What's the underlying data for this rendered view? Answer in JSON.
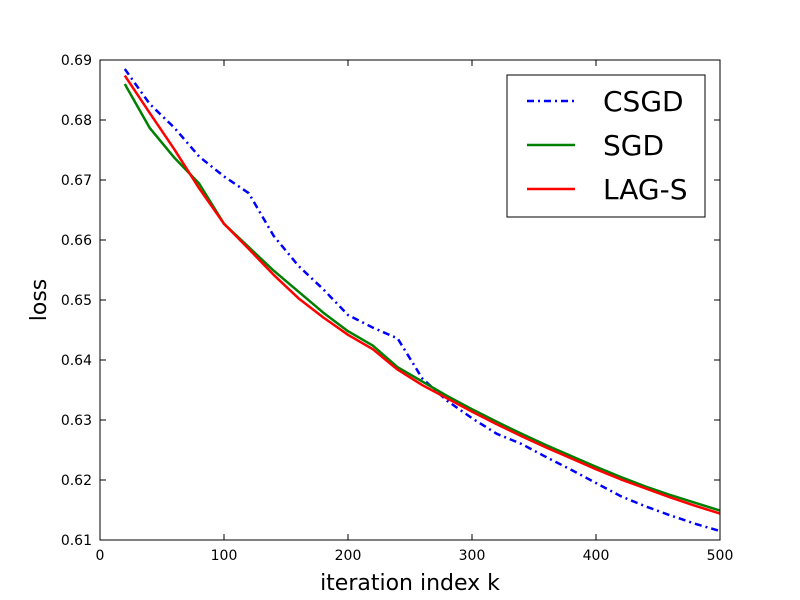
{
  "chart_data": {
    "type": "line",
    "xlabel": "iteration index k",
    "ylabel": "loss",
    "xlim": [
      0,
      500
    ],
    "ylim": [
      0.61,
      0.69
    ],
    "xticks": [
      0,
      100,
      200,
      300,
      400,
      500
    ],
    "yticks": [
      0.61,
      0.62,
      0.63,
      0.64,
      0.65,
      0.66,
      0.67,
      0.68,
      0.69
    ],
    "ytick_labels": [
      "0.61",
      "0.62",
      "0.63",
      "0.64",
      "0.65",
      "0.66",
      "0.67",
      "0.68",
      "0.69"
    ],
    "grid": false,
    "legend_position": "top-right",
    "series": [
      {
        "name": "CSGD",
        "color": "#0000ff",
        "style": "dashdot",
        "x": [
          20,
          40,
          60,
          80,
          100,
          120,
          140,
          160,
          180,
          200,
          220,
          240,
          260,
          280,
          300,
          320,
          340,
          360,
          380,
          400,
          420,
          440,
          460,
          480,
          500
        ],
        "y": [
          0.6885,
          0.6827,
          0.6787,
          0.6739,
          0.6706,
          0.6678,
          0.6607,
          0.6557,
          0.6518,
          0.6475,
          0.6454,
          0.6436,
          0.6369,
          0.6332,
          0.6303,
          0.6277,
          0.626,
          0.6238,
          0.6217,
          0.6195,
          0.6173,
          0.6156,
          0.6141,
          0.6127,
          0.6115
        ]
      },
      {
        "name": "SGD",
        "color": "#008000",
        "style": "solid",
        "x": [
          20,
          40,
          60,
          80,
          100,
          120,
          140,
          160,
          180,
          200,
          220,
          240,
          260,
          280,
          300,
          320,
          340,
          360,
          380,
          400,
          420,
          440,
          460,
          480,
          500
        ],
        "y": [
          0.686,
          0.6787,
          0.6737,
          0.6694,
          0.6627,
          0.6588,
          0.6549,
          0.6514,
          0.6479,
          0.6448,
          0.6424,
          0.6388,
          0.6364,
          0.634,
          0.6318,
          0.6297,
          0.6277,
          0.6258,
          0.624,
          0.6222,
          0.6205,
          0.6189,
          0.6175,
          0.6162,
          0.6149
        ]
      },
      {
        "name": "LAG-S",
        "color": "#ff0000",
        "style": "solid",
        "x": [
          20,
          40,
          60,
          80,
          100,
          120,
          140,
          160,
          180,
          200,
          220,
          240,
          260,
          280,
          300,
          320,
          340,
          360,
          380,
          400,
          420,
          440,
          460,
          480,
          500
        ],
        "y": [
          0.6874,
          0.6812,
          0.6751,
          0.6686,
          0.6627,
          0.6585,
          0.6542,
          0.6503,
          0.6471,
          0.6442,
          0.6418,
          0.6384,
          0.6358,
          0.6336,
          0.6314,
          0.6293,
          0.6273,
          0.6254,
          0.6236,
          0.6218,
          0.6201,
          0.6186,
          0.6171,
          0.6157,
          0.6144
        ]
      }
    ]
  }
}
